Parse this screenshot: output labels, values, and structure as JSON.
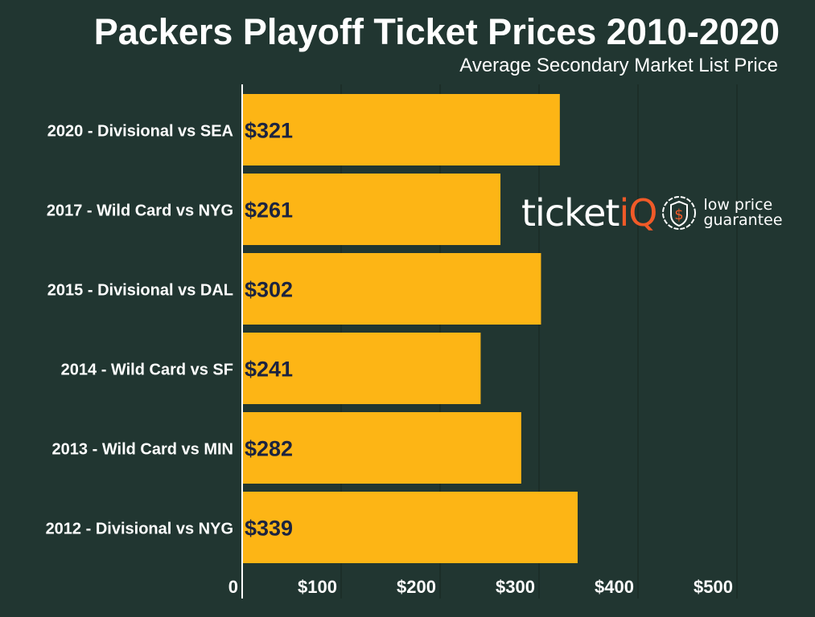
{
  "chart_data": {
    "type": "bar",
    "orientation": "horizontal",
    "title": "Packers Playoff Ticket Prices 2010-2020",
    "subtitle": "Average Secondary Market List Price",
    "categories": [
      "2020 - Divisional vs SEA",
      "2017 - Wild Card vs NYG",
      "2015 - Divisional vs DAL",
      "2014 - Wild Card vs SF",
      "2013 - Wild Card vs MIN",
      "2012 - Divisional vs NYG"
    ],
    "values": [
      321,
      261,
      302,
      241,
      282,
      339
    ],
    "data_labels": [
      "$321",
      "$261",
      "$302",
      "$241",
      "$282",
      "$339"
    ],
    "xlim": [
      0,
      580
    ],
    "x_ticks": [
      0,
      100,
      200,
      300,
      400,
      500
    ],
    "x_tick_labels": [
      "0",
      "$100",
      "$200",
      "$300",
      "$400",
      "$500"
    ],
    "grid": true,
    "colors": {
      "background": "#213631",
      "bar": "#fdb515",
      "value_label": "#1b2340"
    }
  },
  "logo": {
    "brand_a": "ticket",
    "brand_b": "iQ",
    "tagline_1": "low price",
    "tagline_2": "guarantee",
    "accent": "#f05a28"
  }
}
